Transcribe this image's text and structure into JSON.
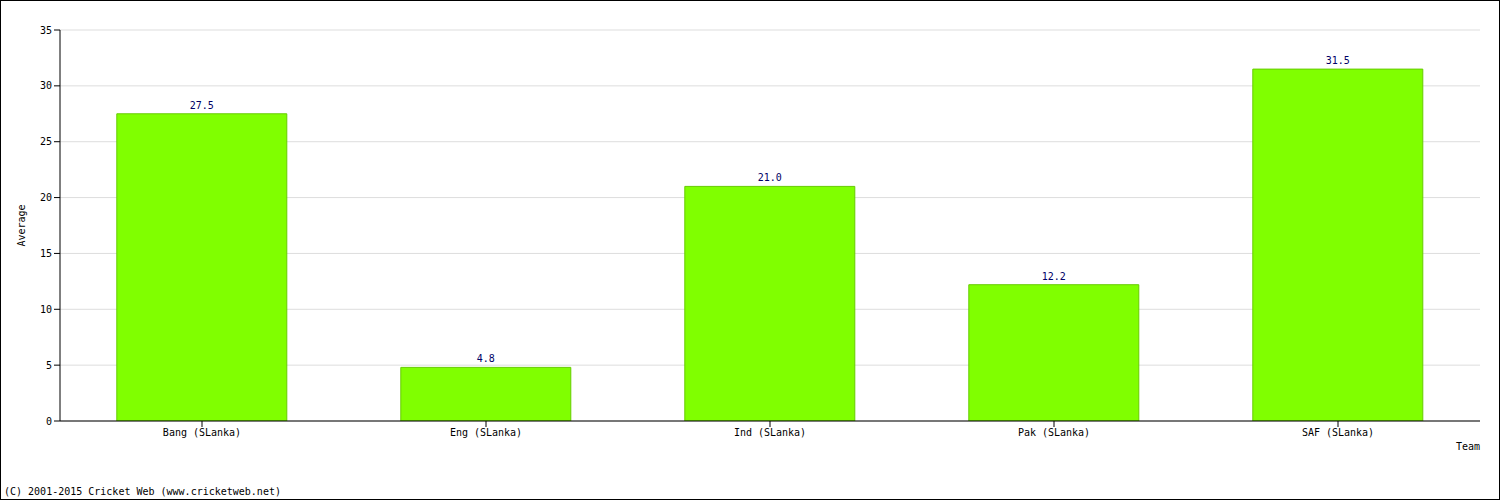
{
  "chart_data": {
    "type": "bar",
    "categories": [
      "Bang (SLanka)",
      "Eng (SLanka)",
      "Ind (SLanka)",
      "Pak (SLanka)",
      "SAF (SLanka)"
    ],
    "values": [
      27.5,
      4.8,
      21.0,
      12.2,
      31.5
    ],
    "value_labels": [
      "27.5",
      "4.8",
      "21.0",
      "12.2",
      "31.5"
    ],
    "data_labels": true,
    "color": "#80ff00",
    "x_label": "Team",
    "y_label": "Average",
    "footer": "(C) 2001-2015 Cricket Web (www.cricketweb.net)",
    "ylim": [
      0,
      35
    ],
    "yticks": [
      0,
      5,
      10,
      15,
      20,
      25,
      30,
      35
    ],
    "grid": true
  }
}
